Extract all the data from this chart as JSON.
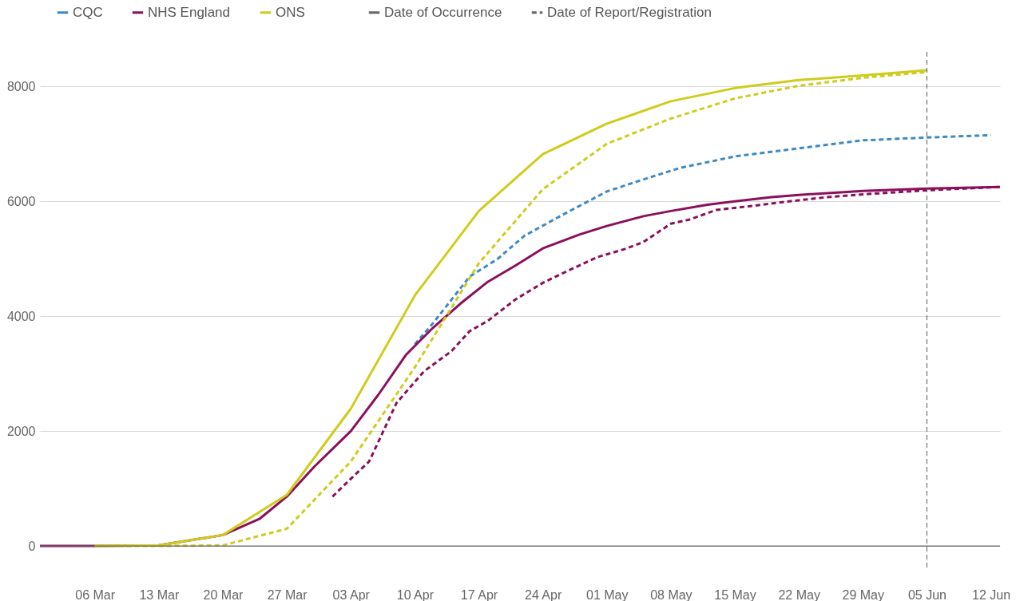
{
  "chart_data": {
    "type": "line",
    "annotations": [
      "Date of Occurrence",
      "Date of Report/Registration"
    ],
    "xlim": [
      "--02-29",
      "--06-13"
    ],
    "xticks": [
      {
        "value": "--03-06",
        "label": "06 Mar"
      },
      {
        "value": "--03-13",
        "label": "13 Mar"
      },
      {
        "value": "--03-20",
        "label": "20 Mar"
      },
      {
        "value": "--03-27",
        "label": "27 Mar"
      },
      {
        "value": "--04-03",
        "label": "03 Apr"
      },
      {
        "value": "--04-10",
        "label": "10 Apr"
      },
      {
        "value": "--04-17",
        "label": "17 Apr"
      },
      {
        "value": "--04-24",
        "label": "24 Apr"
      },
      {
        "value": "--05-01",
        "label": "01 May"
      },
      {
        "value": "--05-08",
        "label": "08 May"
      },
      {
        "value": "--05-15",
        "label": "15 May"
      },
      {
        "value": "--05-22",
        "label": "22 May"
      },
      {
        "value": "--05-29",
        "label": "29 May"
      },
      {
        "value": "--06-05",
        "label": "05 Jun"
      },
      {
        "value": "--06-12",
        "label": "12 Jun"
      }
    ],
    "ylim": [
      -430,
      8600
    ],
    "yticks": [
      0,
      2000,
      4000,
      6000,
      8000
    ],
    "grid": "y",
    "legend": "top left",
    "ref_lines": [
      {
        "axis": "x",
        "value": "--06-05",
        "color": "#555555",
        "line_style": "dashed"
      },
      {
        "axis": "y",
        "value": 0,
        "color": "#666666",
        "line_style": "solid"
      }
    ],
    "series": [
      {
        "name": "CQC",
        "color": "#3d8ac6",
        "line_style": "dashed",
        "x": [
          "--04-10",
          "--04-12",
          "--04-16",
          "--04-19",
          "--04-22",
          "--04-26",
          "--05-01",
          "--05-05",
          "--05-09",
          "--05-15",
          "--05-22",
          "--05-29",
          "--06-05",
          "--06-12"
        ],
        "values": [
          3510,
          3880,
          4690,
          4990,
          5400,
          5750,
          6170,
          6380,
          6580,
          6780,
          6920,
          7060,
          7110,
          7150
        ]
      },
      {
        "name": "NHS England",
        "color": "#8b0f5c",
        "line_style": "solid",
        "x": [
          "--02-29",
          "--03-06",
          "--03-13",
          "--03-20",
          "--03-24",
          "--03-27",
          "--03-30",
          "--04-03",
          "--04-06",
          "--04-09",
          "--04-12",
          "--04-15",
          "--04-18",
          "--04-21",
          "--04-24",
          "--04-28",
          "--05-01",
          "--05-05",
          "--05-08",
          "--05-12",
          "--05-15",
          "--05-19",
          "--05-22",
          "--05-29",
          "--06-05",
          "--06-13"
        ],
        "values": [
          0,
          0,
          10,
          190,
          470,
          860,
          1380,
          2000,
          2630,
          3320,
          3800,
          4220,
          4600,
          4880,
          5180,
          5420,
          5570,
          5740,
          5830,
          5940,
          6000,
          6070,
          6110,
          6180,
          6220,
          6250
        ]
      },
      {
        "color": "#8b0f5c",
        "line_style": "dashed",
        "x": [
          "--04-01",
          "--04-03",
          "--04-05",
          "--04-08",
          "--04-11",
          "--04-14",
          "--04-16",
          "--04-18",
          "--04-21",
          "--04-24",
          "--04-27",
          "--04-30",
          "--05-03",
          "--05-05",
          "--05-08",
          "--05-10",
          "--05-13",
          "--05-17",
          "--05-21",
          "--05-25",
          "--05-29",
          "--06-05",
          "--06-13"
        ],
        "values": [
          860,
          1170,
          1470,
          2490,
          3040,
          3390,
          3740,
          3920,
          4290,
          4580,
          4810,
          5030,
          5170,
          5290,
          5610,
          5680,
          5850,
          5920,
          6000,
          6070,
          6120,
          6190,
          6250
        ]
      },
      {
        "name": "ONS",
        "color": "#cfcc1c",
        "line_style": "solid",
        "x": [
          "--03-06",
          "--03-13",
          "--03-20",
          "--03-27",
          "--04-03",
          "--04-10",
          "--04-17",
          "--04-24",
          "--05-01",
          "--05-08",
          "--05-15",
          "--05-22",
          "--05-29",
          "--06-05"
        ],
        "values": [
          0,
          10,
          190,
          890,
          2390,
          4360,
          5830,
          6820,
          7350,
          7740,
          7970,
          8110,
          8190,
          8280
        ]
      },
      {
        "color": "#cfcc1c",
        "line_style": "dashed",
        "x": [
          "--03-06",
          "--03-13",
          "--03-20",
          "--03-27",
          "--04-03",
          "--04-10",
          "--04-17",
          "--04-24",
          "--05-01",
          "--05-08",
          "--05-15",
          "--05-22",
          "--05-29",
          "--06-05"
        ],
        "values": [
          0,
          0,
          10,
          300,
          1470,
          3110,
          4920,
          6210,
          7000,
          7440,
          7790,
          8010,
          8150,
          8250
        ]
      }
    ]
  }
}
